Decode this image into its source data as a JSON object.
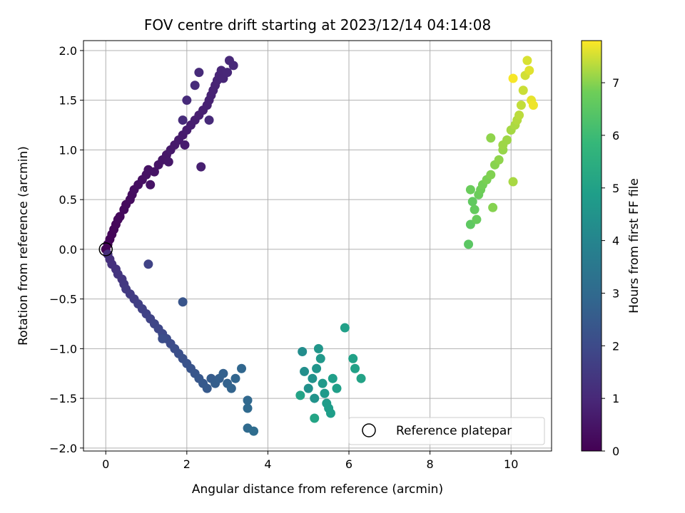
{
  "chart_data": {
    "type": "scatter",
    "title": "FOV centre drift starting at 2023/12/14 04:14:08",
    "xlabel": "Angular distance from reference (arcmin)",
    "ylabel": "Rotation from reference (arcmin)",
    "xlim": [
      -0.55,
      11.0
    ],
    "ylim": [
      -2.03,
      2.1
    ],
    "x_ticks": [
      0,
      2,
      4,
      6,
      8,
      10
    ],
    "y_ticks": [
      -2.0,
      -1.5,
      -1.0,
      -0.5,
      0.0,
      0.5,
      1.0,
      1.5,
      2.0
    ],
    "x_tick_labels": [
      "0",
      "2",
      "4",
      "6",
      "8",
      "10"
    ],
    "y_tick_labels": [
      "−2.0",
      "−1.5",
      "−1.0",
      "−0.5",
      "0.0",
      "0.5",
      "1.0",
      "1.5",
      "2.0"
    ],
    "grid": true,
    "colormap": "viridis",
    "colorbar": {
      "label": "Hours from first FF file",
      "range": [
        0,
        7.8
      ],
      "ticks": [
        0,
        1,
        2,
        3,
        4,
        5,
        6,
        7
      ],
      "tick_labels": [
        "0",
        "1",
        "2",
        "3",
        "4",
        "5",
        "6",
        "7"
      ]
    },
    "legend": {
      "position": "lower-right",
      "entries": [
        "Reference platepar"
      ]
    },
    "reference_point": {
      "x": 0.0,
      "y": 0.0
    },
    "series": [
      {
        "points": [
          [
            0.0,
            0.0,
            0.0
          ],
          [
            0.05,
            0.05,
            0.05
          ],
          [
            0.1,
            0.1,
            0.08
          ],
          [
            0.15,
            0.15,
            0.1
          ],
          [
            0.2,
            0.2,
            0.12
          ],
          [
            0.25,
            0.25,
            0.15
          ],
          [
            0.3,
            0.3,
            0.18
          ],
          [
            0.35,
            0.33,
            0.2
          ],
          [
            0.45,
            0.4,
            0.22
          ],
          [
            0.5,
            0.45,
            0.25
          ],
          [
            0.6,
            0.5,
            0.28
          ],
          [
            0.65,
            0.55,
            0.3
          ],
          [
            0.7,
            0.6,
            0.33
          ],
          [
            0.8,
            0.65,
            0.36
          ],
          [
            0.9,
            0.7,
            0.38
          ],
          [
            1.0,
            0.75,
            0.4
          ],
          [
            1.05,
            0.8,
            0.43
          ],
          [
            1.1,
            0.65,
            0.45
          ],
          [
            1.2,
            0.78,
            0.47
          ],
          [
            1.3,
            0.85,
            0.5
          ],
          [
            1.4,
            0.9,
            0.52
          ],
          [
            1.5,
            0.95,
            0.55
          ],
          [
            1.55,
            0.88,
            0.57
          ],
          [
            1.6,
            1.0,
            0.6
          ],
          [
            1.7,
            1.05,
            0.62
          ],
          [
            1.8,
            1.1,
            0.64
          ],
          [
            1.9,
            1.15,
            0.66
          ],
          [
            1.95,
            1.05,
            0.68
          ],
          [
            2.0,
            1.2,
            0.7
          ],
          [
            2.1,
            1.25,
            0.72
          ],
          [
            2.2,
            1.3,
            0.74
          ],
          [
            2.3,
            1.35,
            0.76
          ],
          [
            2.35,
            0.83,
            0.77
          ],
          [
            2.4,
            1.4,
            0.78
          ],
          [
            2.5,
            1.45,
            0.8
          ],
          [
            2.55,
            1.5,
            0.82
          ],
          [
            2.6,
            1.55,
            0.84
          ],
          [
            2.65,
            1.6,
            0.86
          ],
          [
            2.7,
            1.65,
            0.88
          ],
          [
            2.75,
            1.7,
            0.9
          ],
          [
            2.8,
            1.75,
            0.92
          ],
          [
            2.85,
            1.8,
            0.94
          ],
          [
            2.9,
            1.72,
            0.96
          ],
          [
            3.0,
            1.78,
            0.98
          ],
          [
            3.05,
            1.9,
            1.0
          ],
          [
            3.15,
            1.85,
            1.02
          ],
          [
            2.55,
            1.3,
            1.04
          ],
          [
            2.3,
            1.78,
            1.05
          ],
          [
            2.0,
            1.5,
            1.07
          ],
          [
            1.9,
            1.3,
            1.08
          ],
          [
            2.2,
            1.65,
            1.1
          ],
          [
            0.05,
            -0.05,
            1.15
          ],
          [
            0.1,
            -0.1,
            1.2
          ],
          [
            0.15,
            -0.15,
            1.25
          ],
          [
            0.25,
            -0.2,
            1.3
          ],
          [
            0.3,
            -0.25,
            1.35
          ],
          [
            0.4,
            -0.3,
            1.4
          ],
          [
            0.45,
            -0.35,
            1.45
          ],
          [
            0.5,
            -0.4,
            1.5
          ],
          [
            0.6,
            -0.45,
            1.55
          ],
          [
            0.7,
            -0.5,
            1.6
          ],
          [
            0.8,
            -0.55,
            1.65
          ],
          [
            0.9,
            -0.6,
            1.7
          ],
          [
            1.0,
            -0.65,
            1.75
          ],
          [
            1.05,
            -0.15,
            1.78
          ],
          [
            1.1,
            -0.7,
            1.8
          ],
          [
            1.2,
            -0.75,
            1.85
          ],
          [
            1.3,
            -0.8,
            1.9
          ],
          [
            1.4,
            -0.85,
            1.95
          ],
          [
            1.5,
            -0.9,
            2.0
          ],
          [
            1.6,
            -0.95,
            2.05
          ],
          [
            1.7,
            -1.0,
            2.1
          ],
          [
            1.4,
            -0.9,
            2.12
          ],
          [
            1.8,
            -1.05,
            2.15
          ],
          [
            1.9,
            -1.1,
            2.2
          ],
          [
            2.0,
            -1.15,
            2.25
          ],
          [
            2.1,
            -1.2,
            2.3
          ],
          [
            1.9,
            -0.53,
            2.32
          ],
          [
            2.2,
            -1.25,
            2.35
          ],
          [
            2.3,
            -1.3,
            2.4
          ],
          [
            2.4,
            -1.35,
            2.45
          ],
          [
            2.5,
            -1.4,
            2.5
          ],
          [
            2.6,
            -1.3,
            2.55
          ],
          [
            2.7,
            -1.35,
            2.6
          ],
          [
            2.8,
            -1.3,
            2.65
          ],
          [
            2.9,
            -1.25,
            2.7
          ],
          [
            3.0,
            -1.35,
            2.75
          ],
          [
            3.1,
            -1.4,
            2.8
          ],
          [
            3.2,
            -1.3,
            2.85
          ],
          [
            3.35,
            -1.2,
            2.9
          ],
          [
            3.5,
            -1.52,
            2.95
          ],
          [
            3.5,
            -1.6,
            3.0
          ],
          [
            3.5,
            -1.8,
            3.05
          ],
          [
            3.65,
            -1.83,
            3.1
          ],
          [
            4.85,
            -1.03,
            4.3
          ],
          [
            4.9,
            -1.23,
            4.35
          ],
          [
            5.0,
            -1.4,
            4.4
          ],
          [
            5.1,
            -1.3,
            4.45
          ],
          [
            5.15,
            -1.5,
            4.5
          ],
          [
            5.2,
            -1.2,
            4.55
          ],
          [
            5.25,
            -1.0,
            4.6
          ],
          [
            5.3,
            -1.1,
            4.65
          ],
          [
            5.35,
            -1.35,
            4.7
          ],
          [
            5.4,
            -1.45,
            4.75
          ],
          [
            5.45,
            -1.55,
            4.8
          ],
          [
            5.5,
            -1.6,
            4.85
          ],
          [
            5.55,
            -1.65,
            4.88
          ],
          [
            5.6,
            -1.3,
            4.9
          ],
          [
            5.7,
            -1.4,
            4.93
          ],
          [
            5.9,
            -0.79,
            4.95
          ],
          [
            6.1,
            -1.1,
            4.98
          ],
          [
            6.15,
            -1.2,
            5.0
          ],
          [
            6.3,
            -1.3,
            5.05
          ],
          [
            4.8,
            -1.47,
            5.08
          ],
          [
            5.15,
            -1.7,
            5.1
          ],
          [
            8.95,
            0.05,
            6.5
          ],
          [
            9.0,
            0.25,
            6.55
          ],
          [
            9.05,
            0.48,
            6.6
          ],
          [
            9.1,
            0.4,
            6.65
          ],
          [
            9.15,
            0.3,
            6.7
          ],
          [
            9.2,
            0.55,
            6.75
          ],
          [
            9.25,
            0.6,
            6.8
          ],
          [
            9.3,
            0.65,
            6.85
          ],
          [
            9.4,
            0.7,
            6.9
          ],
          [
            9.5,
            0.75,
            6.95
          ],
          [
            9.55,
            0.42,
            6.98
          ],
          [
            9.6,
            0.85,
            7.0
          ],
          [
            9.7,
            0.9,
            7.05
          ],
          [
            9.8,
            1.0,
            7.1
          ],
          [
            9.9,
            1.1,
            7.15
          ],
          [
            10.0,
            1.2,
            7.2
          ],
          [
            10.05,
            0.68,
            7.22
          ],
          [
            10.1,
            1.25,
            7.25
          ],
          [
            10.15,
            1.3,
            7.3
          ],
          [
            10.2,
            1.35,
            7.35
          ],
          [
            10.25,
            1.45,
            7.4
          ],
          [
            10.3,
            1.6,
            7.45
          ],
          [
            10.35,
            1.75,
            7.5
          ],
          [
            10.4,
            1.9,
            7.55
          ],
          [
            10.45,
            1.8,
            7.6
          ],
          [
            10.5,
            1.5,
            7.65
          ],
          [
            10.55,
            1.45,
            7.7
          ],
          [
            10.05,
            1.72,
            7.75
          ],
          [
            9.5,
            1.12,
            7.05
          ],
          [
            9.0,
            0.6,
            6.75
          ],
          [
            9.8,
            1.05,
            7.15
          ]
        ]
      }
    ]
  }
}
